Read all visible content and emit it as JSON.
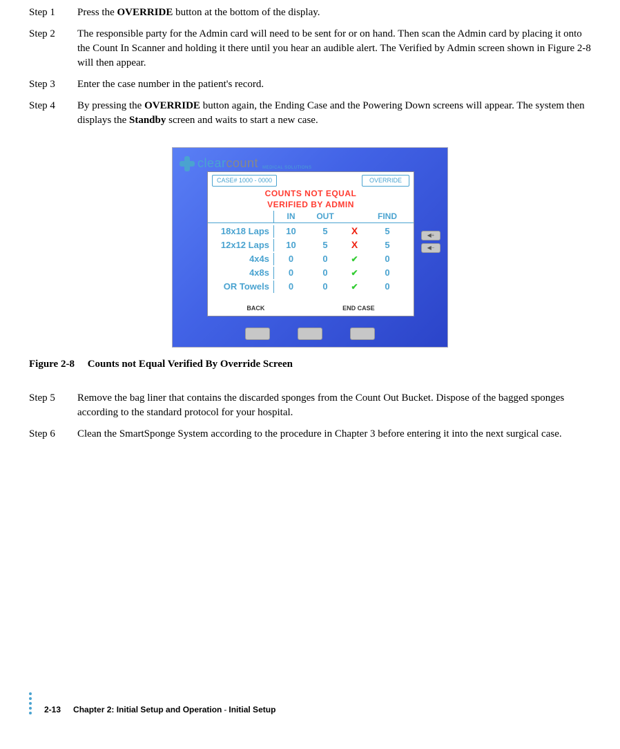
{
  "steps_a": [
    {
      "label": "Step 1",
      "body": "Press the <b>OVERRIDE</b> button at the bottom of the display."
    },
    {
      "label": "Step 2",
      "body": "The responsible party for the Admin card will need to be sent for or on hand. Then scan the Admin card by placing it onto the Count In Scanner and holding it there until you hear an audible alert. The Verified by Admin screen shown in Figure 2-8 will then appear."
    },
    {
      "label": "Step 3",
      "body": "Enter the case number in the patient's record."
    },
    {
      "label": "Step 4",
      "body": "By pressing the <b>OVERRIDE</b> button again, the Ending Case and the Powering Down screens will appear. The system then displays the <b>Standby</b> screen and waits to start a new case."
    }
  ],
  "steps_b": [
    {
      "label": "Step 5",
      "body": "Remove the bag liner that contains the discarded sponges from the Count Out Bucket. Dispose of the bagged sponges according to the standard protocol for your hospital."
    },
    {
      "label": "Step 6",
      "body": "Clean the SmartSponge System according to the procedure in Chapter 3 before entering it into the next surgical case."
    }
  ],
  "figure": {
    "caption_label": "Figure 2-8",
    "caption_text": "Counts not Equal Verified By Override Screen"
  },
  "device": {
    "logo": {
      "part1": "clear",
      "part2": "count",
      "sub": "MEDICAL SOLUTIONS"
    },
    "case_label": "CASE# 1000 - 0000",
    "override_label": "OVERRIDE",
    "header_line1": "COUNTS NOT EQUAL",
    "header_line2": "VERIFIED BY ADMIN",
    "cols": {
      "in": "IN",
      "out": "OUT",
      "find": "FIND"
    },
    "rows": [
      {
        "name": "18x18 Laps",
        "in": "10",
        "out": "5",
        "mark": "x",
        "find": "5"
      },
      {
        "name": "12x12 Laps",
        "in": "10",
        "out": "5",
        "mark": "x",
        "find": "5"
      },
      {
        "name": "4x4s",
        "in": "0",
        "out": "0",
        "mark": "ok",
        "find": "0"
      },
      {
        "name": "4x8s",
        "in": "0",
        "out": "0",
        "mark": "ok",
        "find": "0"
      },
      {
        "name": "OR Towels",
        "in": "0",
        "out": "0",
        "mark": "ok",
        "find": "0"
      }
    ],
    "bottom": {
      "back": "BACK",
      "end": "END CASE"
    },
    "side": {
      "up": "◀+",
      "down": "◀−"
    }
  },
  "footer": {
    "page": "2-13",
    "chapter": "Chapter 2: Initial Setup and Operation",
    "section": "Initial Setup"
  },
  "colors": {
    "brand": "#4aa3d0",
    "device_grad_a": "#5a7ff5",
    "device_grad_b": "#2b44c9",
    "mark_x": "#e21",
    "mark_ok": "#3c3",
    "button_grey": "#c7c7c7"
  }
}
